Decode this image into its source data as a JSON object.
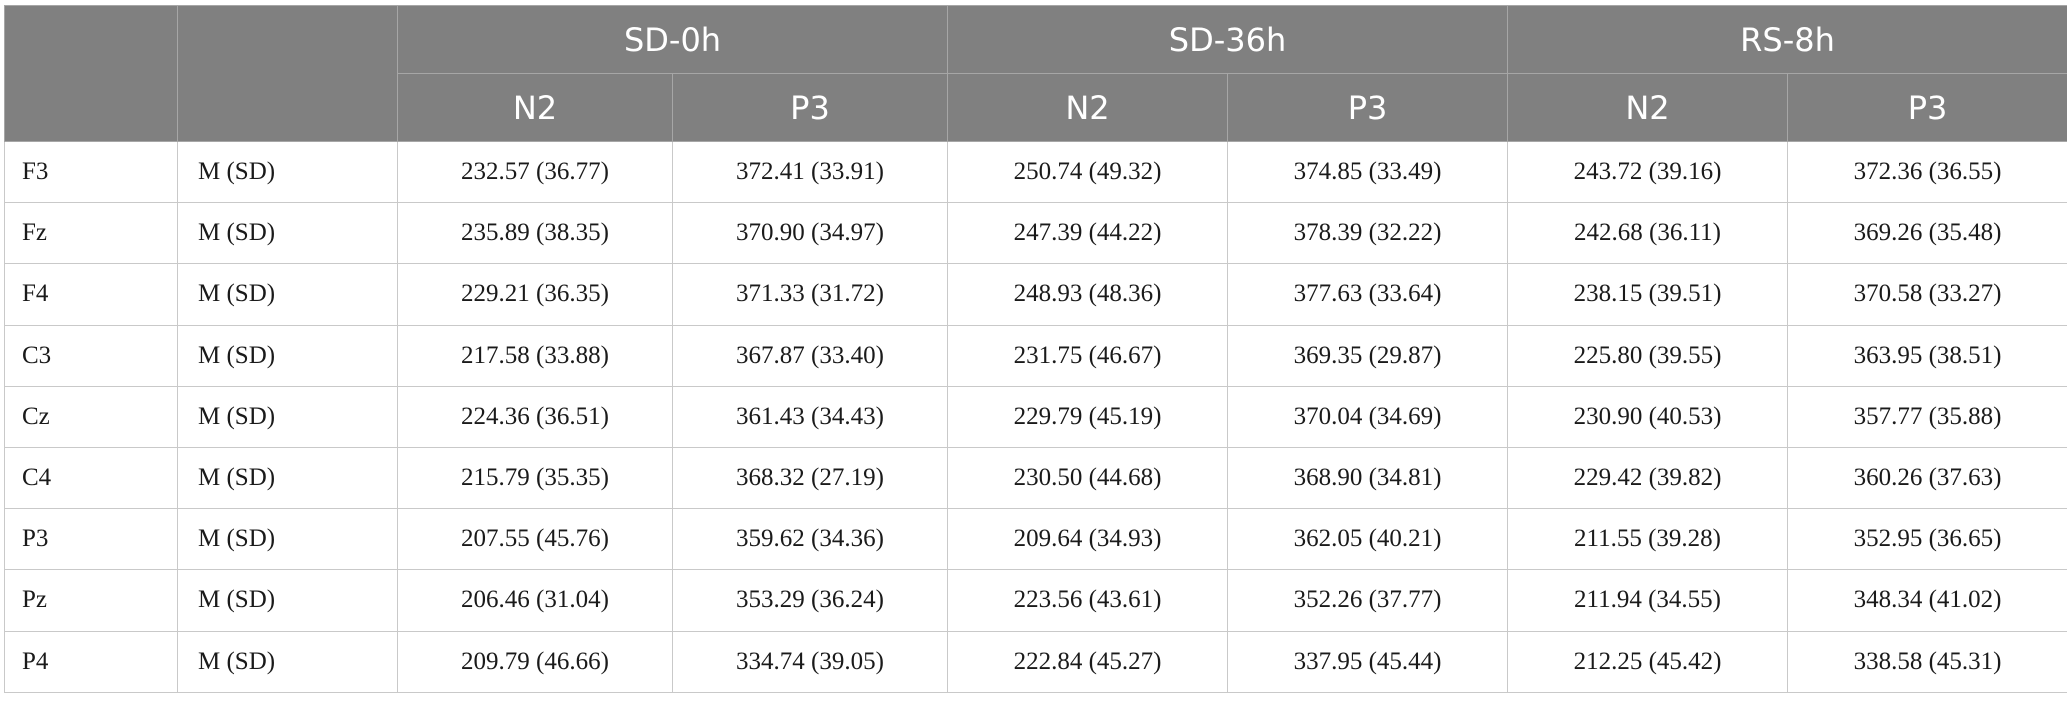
{
  "header": {
    "col1": "",
    "col2": "",
    "groups": [
      "SD-0h",
      "SD-36h",
      "RS-8h"
    ],
    "subheaders": [
      "N2",
      "P3",
      "N2",
      "P3",
      "N2",
      "P3"
    ]
  },
  "rows": [
    {
      "site": "F3",
      "stat": "M (SD)",
      "values": [
        "232.57 (36.77)",
        "372.41 (33.91)",
        "250.74 (49.32)",
        "374.85 (33.49)",
        "243.72 (39.16)",
        "372.36 (36.55)"
      ]
    },
    {
      "site": "Fz",
      "stat": "M (SD)",
      "values": [
        "235.89 (38.35)",
        "370.90 (34.97)",
        "247.39 (44.22)",
        "378.39 (32.22)",
        "242.68 (36.11)",
        "369.26 (35.48)"
      ]
    },
    {
      "site": "F4",
      "stat": "M (SD)",
      "values": [
        "229.21 (36.35)",
        "371.33 (31.72)",
        "248.93 (48.36)",
        "377.63 (33.64)",
        "238.15 (39.51)",
        "370.58 (33.27)"
      ]
    },
    {
      "site": "C3",
      "stat": "M (SD)",
      "values": [
        "217.58 (33.88)",
        "367.87 (33.40)",
        "231.75 (46.67)",
        "369.35 (29.87)",
        "225.80 (39.55)",
        "363.95 (38.51)"
      ]
    },
    {
      "site": "Cz",
      "stat": "M (SD)",
      "values": [
        "224.36 (36.51)",
        "361.43 (34.43)",
        "229.79 (45.19)",
        "370.04 (34.69)",
        "230.90 (40.53)",
        "357.77 (35.88)"
      ]
    },
    {
      "site": "C4",
      "stat": "M (SD)",
      "values": [
        "215.79 (35.35)",
        "368.32 (27.19)",
        "230.50 (44.68)",
        "368.90 (34.81)",
        "229.42 (39.82)",
        "360.26 (37.63)"
      ]
    },
    {
      "site": "P3",
      "stat": "M (SD)",
      "values": [
        "207.55 (45.76)",
        "359.62 (34.36)",
        "209.64 (34.93)",
        "362.05 (40.21)",
        "211.55 (39.28)",
        "352.95 (36.65)"
      ]
    },
    {
      "site": "Pz",
      "stat": "M (SD)",
      "values": [
        "206.46 (31.04)",
        "353.29 (36.24)",
        "223.56 (43.61)",
        "352.26 (37.77)",
        "211.94 (34.55)",
        "348.34 (41.02)"
      ]
    },
    {
      "site": "P4",
      "stat": "M (SD)",
      "values": [
        "209.79 (46.66)",
        "334.74 (39.05)",
        "222.84 (45.27)",
        "337.95 (45.44)",
        "212.25 (45.42)",
        "338.58 (45.31)"
      ]
    }
  ]
}
